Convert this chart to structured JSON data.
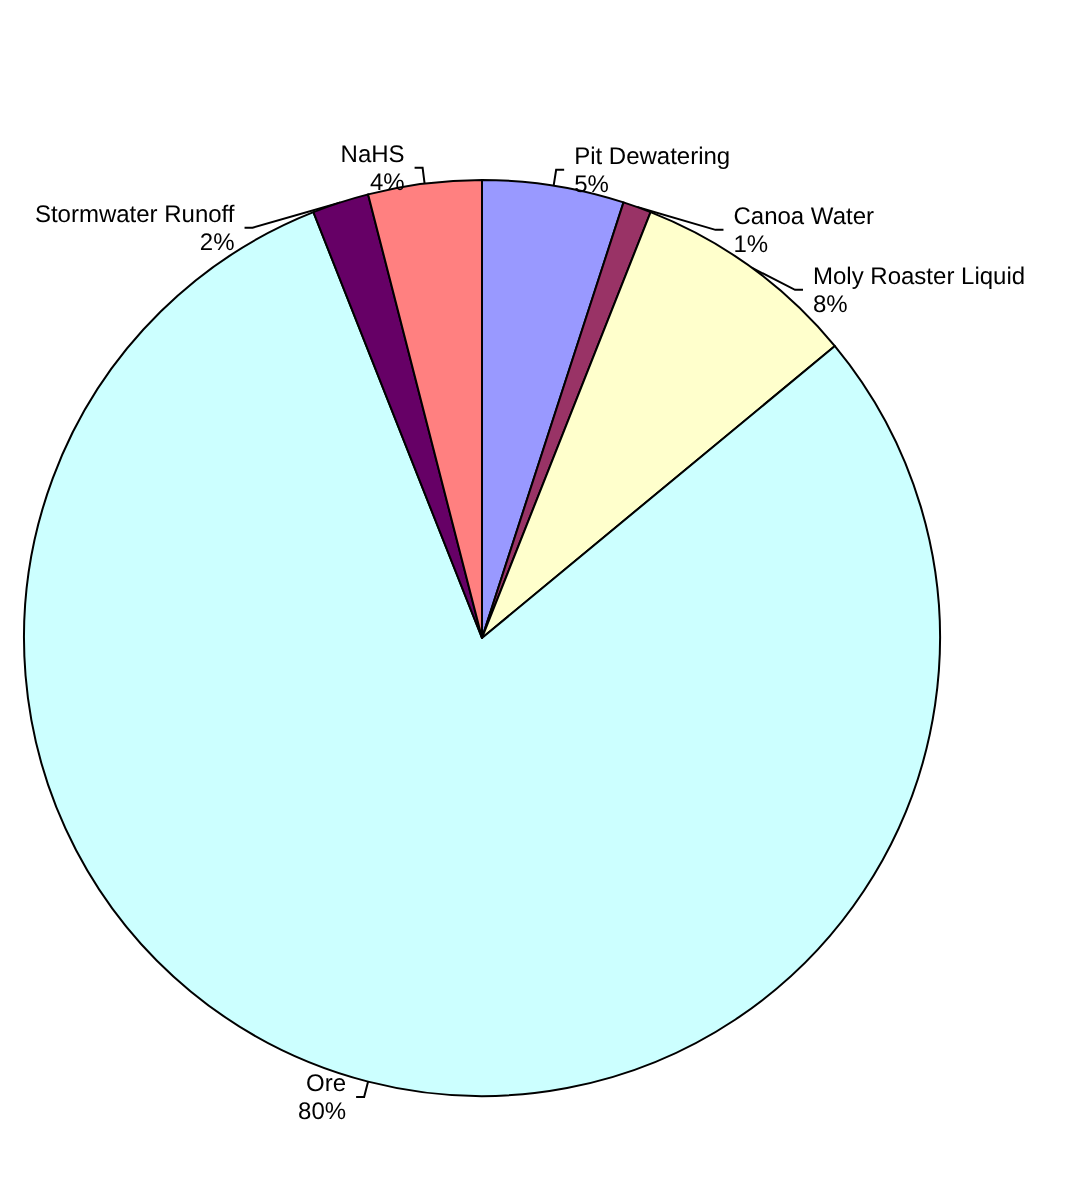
{
  "chart_data": {
    "type": "pie",
    "categories": [
      "Pit Dewatering",
      "Canoa Water",
      "Moly Roaster Liquid",
      "Ore",
      "Stormwater Runoff",
      "NaHS"
    ],
    "values": [
      5,
      1,
      8,
      80,
      2,
      4
    ],
    "colors": [
      "#9999ff",
      "#993366",
      "#ffffcc",
      "#ccffff",
      "#660066",
      "#ff8080"
    ],
    "value_labels": [
      "5%",
      "1%",
      "8%",
      "80%",
      "2%",
      "4%"
    ],
    "legend": false
  }
}
